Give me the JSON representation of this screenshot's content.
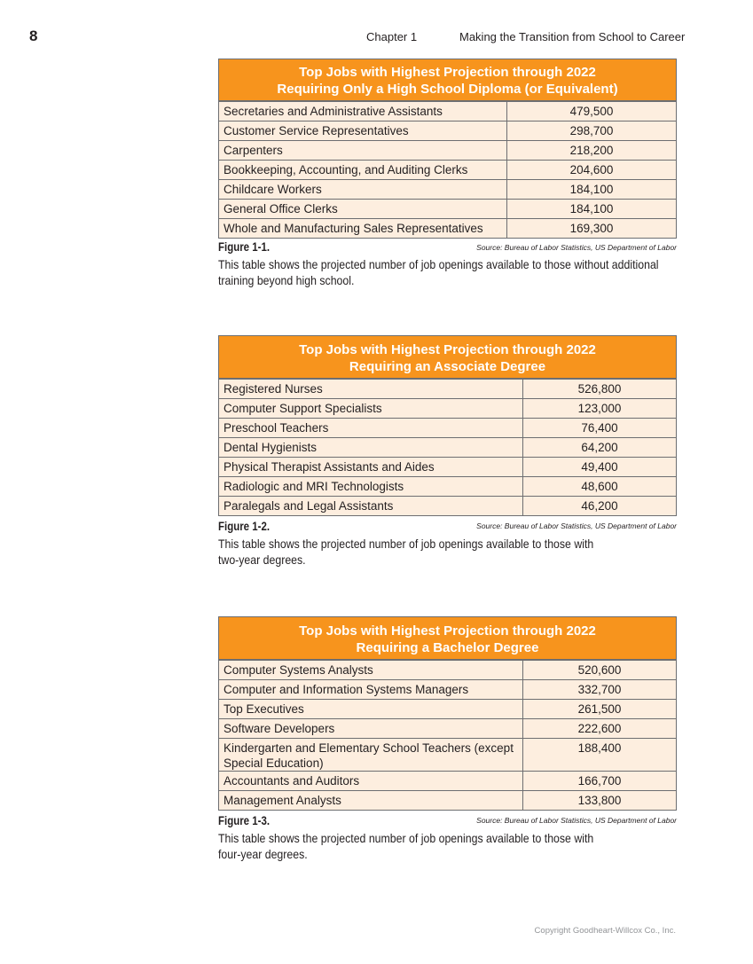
{
  "header": {
    "page_number": "8",
    "chapter": "Chapter 1",
    "title": "Making the Transition from School to Career"
  },
  "colors": {
    "header_orange": "#f7941d",
    "cell_bg": "#fdeedf"
  },
  "tables": [
    {
      "title_line1": "Top Jobs with Highest Projection through 2022",
      "title_line2": "Requiring Only a High School Diploma (or Equivalent)",
      "rows": [
        [
          "Secretaries and Administrative Assistants",
          "479,500"
        ],
        [
          "Customer Service Representatives",
          "298,700"
        ],
        [
          "Carpenters",
          "218,200"
        ],
        [
          "Bookkeeping, Accounting, and Auditing Clerks",
          "204,600"
        ],
        [
          "Childcare Workers",
          "184,100"
        ],
        [
          "General Office Clerks",
          "184,100"
        ],
        [
          "Whole and Manufacturing Sales Representatives",
          "169,300"
        ]
      ],
      "figure": "Figure 1-1.",
      "source": "Source: Bureau of Labor Statistics, US Department of Labor",
      "desc_line1": "This table shows the projected number of job openings available to those without additional",
      "desc_line2": "training beyond high school."
    },
    {
      "title_line1": "Top Jobs with Highest Projection through 2022",
      "title_line2": "Requiring an Associate Degree",
      "rows": [
        [
          "Registered Nurses",
          "526,800"
        ],
        [
          "Computer Support Specialists",
          "123,000"
        ],
        [
          "Preschool Teachers",
          "76,400"
        ],
        [
          "Dental Hygienists",
          "64,200"
        ],
        [
          "Physical Therapist Assistants and Aides",
          "49,400"
        ],
        [
          "Radiologic and MRI Technologists",
          "48,600"
        ],
        [
          "Paralegals and Legal Assistants",
          "46,200"
        ]
      ],
      "figure": "Figure 1-2.",
      "source": "Source: Bureau of Labor Statistics, US Department of Labor",
      "desc_line1": "This table shows the projected number of job openings available to those with",
      "desc_line2": "two-year degrees."
    },
    {
      "title_line1": "Top Jobs with Highest Projection through 2022",
      "title_line2": "Requiring a Bachelor Degree",
      "rows": [
        [
          "Computer Systems Analysts",
          "520,600"
        ],
        [
          "Computer and Information Systems Managers",
          "332,700"
        ],
        [
          "Top Executives",
          "261,500"
        ],
        [
          "Software Developers",
          "222,600"
        ],
        [
          "Kindergarten and Elementary School Teachers (except Special Education)",
          "188,400"
        ],
        [
          "Accountants and Auditors",
          "166,700"
        ],
        [
          "Management Analysts",
          "133,800"
        ]
      ],
      "figure": "Figure 1-3.",
      "source": "Source: Bureau of Labor Statistics, US Department of Labor",
      "desc_line1": "This table shows the projected number of job openings available to those with",
      "desc_line2": "four-year degrees."
    }
  ],
  "footer": {
    "copyright": "Copyright Goodheart-Willcox Co., Inc."
  }
}
